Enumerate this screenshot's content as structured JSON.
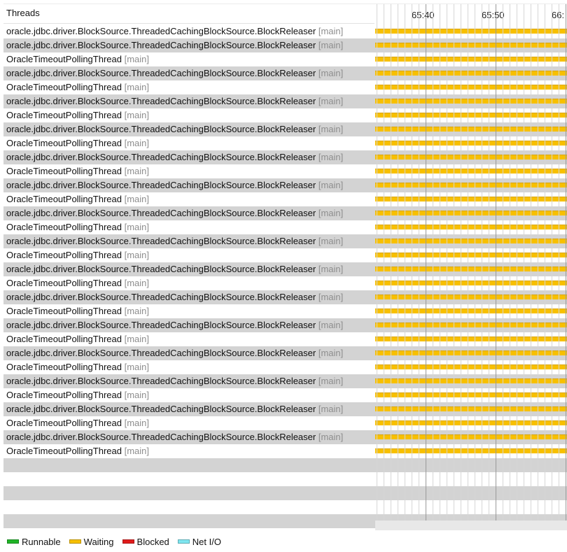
{
  "panel": {
    "title": "Threads"
  },
  "timeline": {
    "ticks": [
      "65:40",
      "65:50",
      "66:"
    ],
    "state_colors": {
      "runnable": "#21b528",
      "waiting": "#f7c000",
      "blocked": "#e01b1b",
      "net_io": "#7fe6f0"
    }
  },
  "threads": [
    {
      "name": "oracle.jdbc.driver.BlockSource.ThreadedCachingBlockSource.BlockReleaser",
      "group": "[main]",
      "state": "waiting"
    },
    {
      "name": "oracle.jdbc.driver.BlockSource.ThreadedCachingBlockSource.BlockReleaser",
      "group": "[main]",
      "state": "waiting"
    },
    {
      "name": "OracleTimeoutPollingThread",
      "group": "[main]",
      "state": "waiting"
    },
    {
      "name": "oracle.jdbc.driver.BlockSource.ThreadedCachingBlockSource.BlockReleaser",
      "group": "[main]",
      "state": "waiting"
    },
    {
      "name": "OracleTimeoutPollingThread",
      "group": "[main]",
      "state": "waiting"
    },
    {
      "name": "oracle.jdbc.driver.BlockSource.ThreadedCachingBlockSource.BlockReleaser",
      "group": "[main]",
      "state": "waiting"
    },
    {
      "name": "OracleTimeoutPollingThread",
      "group": "[main]",
      "state": "waiting"
    },
    {
      "name": "oracle.jdbc.driver.BlockSource.ThreadedCachingBlockSource.BlockReleaser",
      "group": "[main]",
      "state": "waiting"
    },
    {
      "name": "OracleTimeoutPollingThread",
      "group": "[main]",
      "state": "waiting"
    },
    {
      "name": "oracle.jdbc.driver.BlockSource.ThreadedCachingBlockSource.BlockReleaser",
      "group": "[main]",
      "state": "waiting"
    },
    {
      "name": "OracleTimeoutPollingThread",
      "group": "[main]",
      "state": "waiting"
    },
    {
      "name": "oracle.jdbc.driver.BlockSource.ThreadedCachingBlockSource.BlockReleaser",
      "group": "[main]",
      "state": "waiting"
    },
    {
      "name": "OracleTimeoutPollingThread",
      "group": "[main]",
      "state": "waiting"
    },
    {
      "name": "oracle.jdbc.driver.BlockSource.ThreadedCachingBlockSource.BlockReleaser",
      "group": "[main]",
      "state": "waiting"
    },
    {
      "name": "OracleTimeoutPollingThread",
      "group": "[main]",
      "state": "waiting"
    },
    {
      "name": "oracle.jdbc.driver.BlockSource.ThreadedCachingBlockSource.BlockReleaser",
      "group": "[main]",
      "state": "waiting"
    },
    {
      "name": "OracleTimeoutPollingThread",
      "group": "[main]",
      "state": "waiting"
    },
    {
      "name": "oracle.jdbc.driver.BlockSource.ThreadedCachingBlockSource.BlockReleaser",
      "group": "[main]",
      "state": "waiting"
    },
    {
      "name": "OracleTimeoutPollingThread",
      "group": "[main]",
      "state": "waiting"
    },
    {
      "name": "oracle.jdbc.driver.BlockSource.ThreadedCachingBlockSource.BlockReleaser",
      "group": "[main]",
      "state": "waiting"
    },
    {
      "name": "OracleTimeoutPollingThread",
      "group": "[main]",
      "state": "waiting"
    },
    {
      "name": "oracle.jdbc.driver.BlockSource.ThreadedCachingBlockSource.BlockReleaser",
      "group": "[main]",
      "state": "waiting"
    },
    {
      "name": "OracleTimeoutPollingThread",
      "group": "[main]",
      "state": "waiting"
    },
    {
      "name": "oracle.jdbc.driver.BlockSource.ThreadedCachingBlockSource.BlockReleaser",
      "group": "[main]",
      "state": "waiting"
    },
    {
      "name": "OracleTimeoutPollingThread",
      "group": "[main]",
      "state": "waiting"
    },
    {
      "name": "oracle.jdbc.driver.BlockSource.ThreadedCachingBlockSource.BlockReleaser",
      "group": "[main]",
      "state": "waiting"
    },
    {
      "name": "OracleTimeoutPollingThread",
      "group": "[main]",
      "state": "waiting"
    },
    {
      "name": "oracle.jdbc.driver.BlockSource.ThreadedCachingBlockSource.BlockReleaser",
      "group": "[main]",
      "state": "waiting"
    },
    {
      "name": "OracleTimeoutPollingThread",
      "group": "[main]",
      "state": "waiting"
    },
    {
      "name": "oracle.jdbc.driver.BlockSource.ThreadedCachingBlockSource.BlockReleaser",
      "group": "[main]",
      "state": "waiting"
    },
    {
      "name": "OracleTimeoutPollingThread",
      "group": "[main]",
      "state": "waiting"
    }
  ],
  "legend": [
    {
      "label": "Runnable",
      "color": "#21b528"
    },
    {
      "label": "Waiting",
      "color": "#f7c000"
    },
    {
      "label": "Blocked",
      "color": "#e01b1b"
    },
    {
      "label": "Net I/O",
      "color": "#7fe6f0"
    }
  ]
}
